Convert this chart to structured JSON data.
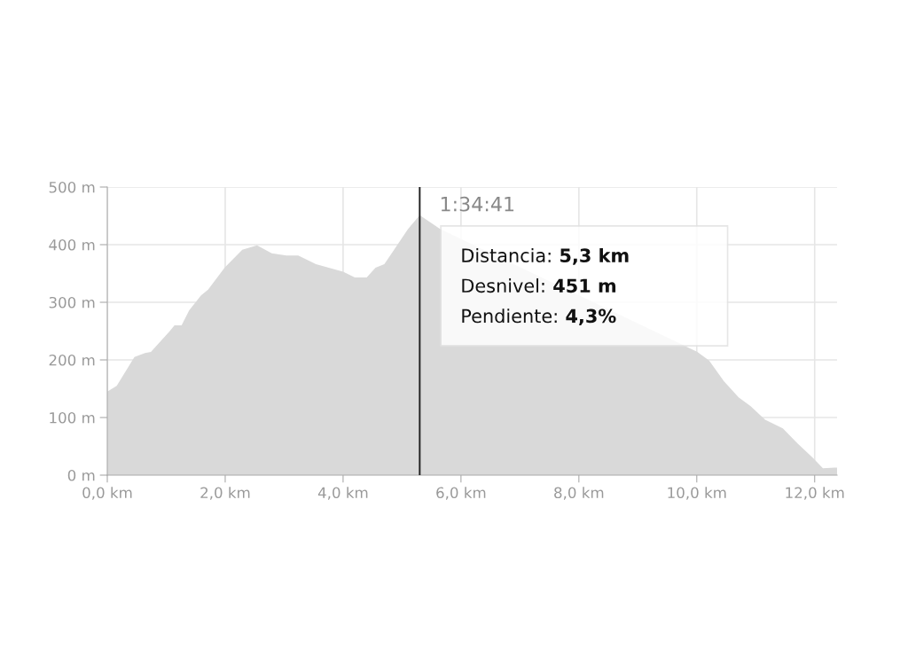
{
  "chart_data": {
    "type": "area",
    "color": "#d9d9d9",
    "x": [
      0,
      0.16,
      0.46,
      0.64,
      0.74,
      1.06,
      1.14,
      1.26,
      1.39,
      1.59,
      1.71,
      1.99,
      2.29,
      2.54,
      2.79,
      3.04,
      3.24,
      3.54,
      4.0,
      4.2,
      4.4,
      4.55,
      4.7,
      4.85,
      5.1,
      5.3,
      5.65,
      6.0,
      7.0,
      8.0,
      9.0,
      9.5,
      10.01,
      10.21,
      10.46,
      10.71,
      10.91,
      11.16,
      11.46,
      11.71,
      11.97,
      12.14,
      12.34,
      12.38
    ],
    "values": [
      145,
      155,
      205,
      212,
      214,
      250,
      260,
      260,
      286,
      312,
      322,
      360,
      391,
      399,
      385,
      381,
      381,
      366,
      353,
      343,
      343,
      360,
      366,
      389,
      427,
      451,
      427,
      null,
      null,
      null,
      null,
      null,
      214,
      199,
      163,
      135,
      120,
      96,
      81,
      55,
      30,
      12,
      13,
      13
    ],
    "xlim": [
      0,
      12.38
    ],
    "xticks": [
      {
        "value": 0,
        "label": "0,0 km"
      },
      {
        "value": 2,
        "label": "2,0 km"
      },
      {
        "value": 4,
        "label": "4,0 km"
      },
      {
        "value": 6,
        "label": "6,0 km"
      },
      {
        "value": 8,
        "label": "8,0 km"
      },
      {
        "value": 10,
        "label": "10,0 km"
      },
      {
        "value": 12,
        "label": "12,0 km"
      }
    ],
    "ylim": [
      0,
      500
    ],
    "yticks": [
      {
        "value": 0,
        "label": "0 m"
      },
      {
        "value": 100,
        "label": "100 m"
      },
      {
        "value": 200,
        "label": "200 m"
      },
      {
        "value": 300,
        "label": "300 m"
      },
      {
        "value": 400,
        "label": "400 m"
      },
      {
        "value": 500,
        "label": "500 m"
      }
    ],
    "grid": true,
    "ref_lines": [
      {
        "axis": "x",
        "value": 5.3,
        "color": "#222222"
      }
    ],
    "annotations": [
      "1:34:41",
      "Distancia:",
      "5,3 km",
      "Desnivel:",
      "451 m",
      "Pendiente:",
      "4,3%"
    ]
  }
}
